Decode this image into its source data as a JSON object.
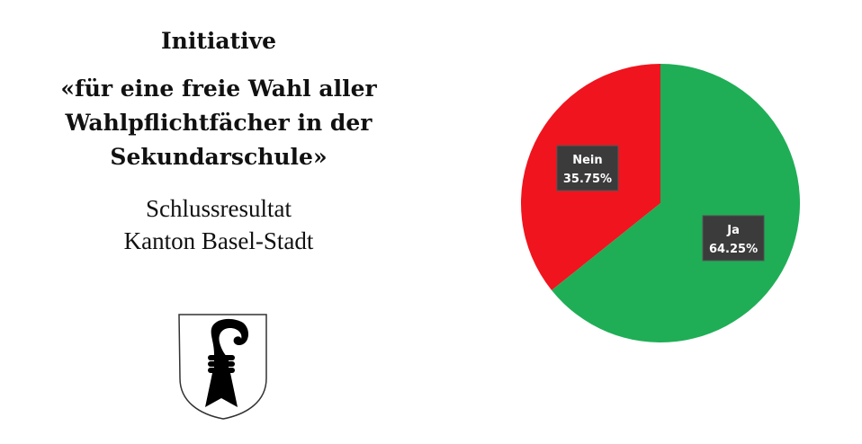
{
  "header": {
    "title": "Initiative",
    "subtitle": "«für eine freie Wahl aller Wahlpflichtfächer in der Sekundarschule»",
    "result_line1": "Schlussresultat",
    "result_line2": "Kanton Basel-Stadt"
  },
  "crest": {
    "icon": "basel-crest-icon"
  },
  "chart_data": {
    "type": "pie",
    "title": "",
    "slices": [
      {
        "label": "Ja",
        "value": 64.25,
        "display": "64.25%",
        "color": "#1fae56"
      },
      {
        "label": "Nein",
        "value": 35.75,
        "display": "35.75%",
        "color": "#f0141e"
      }
    ],
    "start_angle_deg": 0,
    "direction": "clockwise",
    "label_background": "#3b3b3b"
  }
}
